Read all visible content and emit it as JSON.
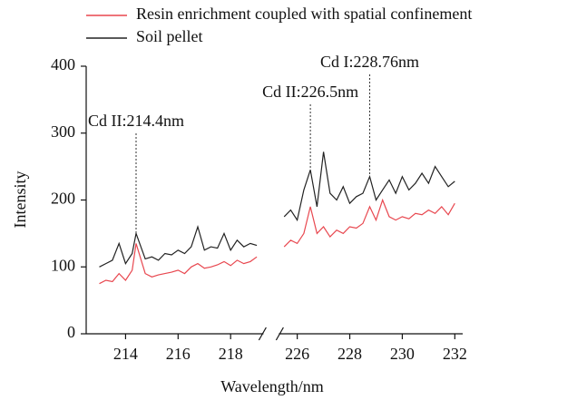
{
  "chart_data": {
    "type": "line",
    "xlabel": "Wavelength/nm",
    "ylabel": "Intensity",
    "broken_x_axis": true,
    "xlim": [
      [
        212.5,
        219.25
      ],
      [
        225.3,
        232.3
      ]
    ],
    "xticks": [
      214,
      216,
      218,
      226,
      228,
      230,
      232
    ],
    "ylim": [
      0,
      400
    ],
    "yticks": [
      0,
      100,
      200,
      300,
      400
    ],
    "legend": "top",
    "x": [
      213.0,
      213.25,
      213.5,
      213.75,
      214.0,
      214.25,
      214.4,
      214.75,
      215.0,
      215.25,
      215.5,
      215.75,
      216.0,
      216.25,
      216.5,
      216.75,
      217.0,
      217.25,
      217.5,
      217.75,
      218.0,
      218.25,
      218.5,
      218.75,
      219.0,
      null,
      225.5,
      225.75,
      226.0,
      226.25,
      226.5,
      226.75,
      227.0,
      227.25,
      227.5,
      227.75,
      228.0,
      228.25,
      228.5,
      228.76,
      229.0,
      229.25,
      229.5,
      229.75,
      230.0,
      230.25,
      230.5,
      230.75,
      231.0,
      231.25,
      231.5,
      231.75,
      232.0
    ],
    "series": [
      {
        "name": "Resin enrichment coupled with spatial confinement",
        "color": "#e8474f",
        "values": [
          75,
          80,
          78,
          90,
          80,
          95,
          135,
          90,
          85,
          88,
          90,
          92,
          95,
          90,
          100,
          105,
          98,
          100,
          103,
          108,
          102,
          110,
          105,
          108,
          115,
          null,
          130,
          140,
          135,
          150,
          190,
          150,
          160,
          145,
          155,
          150,
          160,
          158,
          165,
          190,
          170,
          200,
          175,
          170,
          175,
          172,
          180,
          178,
          185,
          180,
          190,
          178,
          195
        ]
      },
      {
        "name": "Soil pellet",
        "color": "#222222",
        "values": [
          100,
          105,
          110,
          135,
          105,
          120,
          150,
          112,
          115,
          110,
          120,
          118,
          125,
          120,
          130,
          160,
          125,
          130,
          128,
          150,
          125,
          140,
          130,
          135,
          132,
          null,
          175,
          185,
          170,
          215,
          245,
          190,
          272,
          210,
          200,
          220,
          195,
          205,
          210,
          235,
          200,
          215,
          230,
          210,
          235,
          215,
          225,
          240,
          225,
          250,
          235,
          220,
          228
        ]
      }
    ],
    "annotations": [
      {
        "text": "Cd II:214.4nm",
        "x": 214.4
      },
      {
        "text": "Cd II:226.5nm",
        "x": 226.5
      },
      {
        "text": "Cd I:228.76nm",
        "x": 228.76
      }
    ]
  }
}
